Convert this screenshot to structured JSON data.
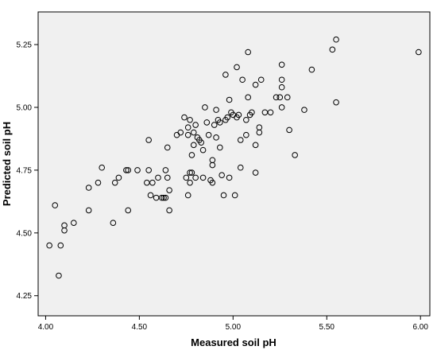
{
  "chart_data": {
    "type": "scatter",
    "xlabel": "Measured soil pH",
    "ylabel": "Predicted soil pH",
    "xlim": [
      3.96,
      6.05
    ],
    "ylim": [
      4.17,
      5.38
    ],
    "xticks": [
      {
        "value": 4.0,
        "label": "4.00"
      },
      {
        "value": 4.5,
        "label": "4.50"
      },
      {
        "value": 5.0,
        "label": "5.00"
      },
      {
        "value": 5.5,
        "label": "5.50"
      },
      {
        "value": 6.0,
        "label": "6.00"
      }
    ],
    "yticks": [
      {
        "value": 4.25,
        "label": "4.25"
      },
      {
        "value": 4.5,
        "label": "4.50"
      },
      {
        "value": 4.75,
        "label": "4.75"
      },
      {
        "value": 5.0,
        "label": "5.00"
      },
      {
        "value": 5.25,
        "label": "5.25"
      }
    ],
    "grid": false,
    "plot_background": "#f0f0f0",
    "marker": "open-circle",
    "points": [
      [
        4.02,
        4.45
      ],
      [
        4.05,
        4.61
      ],
      [
        4.07,
        4.33
      ],
      [
        4.08,
        4.45
      ],
      [
        4.1,
        4.51
      ],
      [
        4.1,
        4.53
      ],
      [
        4.15,
        4.54
      ],
      [
        4.23,
        4.59
      ],
      [
        4.23,
        4.68
      ],
      [
        4.28,
        4.7
      ],
      [
        4.3,
        4.76
      ],
      [
        4.36,
        4.54
      ],
      [
        4.37,
        4.7
      ],
      [
        4.39,
        4.72
      ],
      [
        4.43,
        4.75
      ],
      [
        4.44,
        4.75
      ],
      [
        4.44,
        4.59
      ],
      [
        4.49,
        4.75
      ],
      [
        4.54,
        4.7
      ],
      [
        4.55,
        4.75
      ],
      [
        4.55,
        4.87
      ],
      [
        4.56,
        4.65
      ],
      [
        4.57,
        4.7
      ],
      [
        4.59,
        4.64
      ],
      [
        4.6,
        4.72
      ],
      [
        4.62,
        4.64
      ],
      [
        4.63,
        4.64
      ],
      [
        4.64,
        4.75
      ],
      [
        4.64,
        4.64
      ],
      [
        4.65,
        4.84
      ],
      [
        4.65,
        4.72
      ],
      [
        4.66,
        4.67
      ],
      [
        4.66,
        4.59
      ],
      [
        4.7,
        4.89
      ],
      [
        4.72,
        4.9
      ],
      [
        4.74,
        4.96
      ],
      [
        4.75,
        4.72
      ],
      [
        4.76,
        4.92
      ],
      [
        4.76,
        4.89
      ],
      [
        4.76,
        4.65
      ],
      [
        4.77,
        4.95
      ],
      [
        4.77,
        4.74
      ],
      [
        4.77,
        4.7
      ],
      [
        4.78,
        4.74
      ],
      [
        4.78,
        4.81
      ],
      [
        4.79,
        4.9
      ],
      [
        4.79,
        4.85
      ],
      [
        4.8,
        4.72
      ],
      [
        4.8,
        4.93
      ],
      [
        4.81,
        4.88
      ],
      [
        4.82,
        4.87
      ],
      [
        4.83,
        4.86
      ],
      [
        4.84,
        4.83
      ],
      [
        4.84,
        4.72
      ],
      [
        4.85,
        5.0
      ],
      [
        4.86,
        4.94
      ],
      [
        4.87,
        4.89
      ],
      [
        4.88,
        4.71
      ],
      [
        4.89,
        4.7
      ],
      [
        4.89,
        4.79
      ],
      [
        4.89,
        4.77
      ],
      [
        4.9,
        4.93
      ],
      [
        4.91,
        4.99
      ],
      [
        4.91,
        4.88
      ],
      [
        4.92,
        4.95
      ],
      [
        4.93,
        4.84
      ],
      [
        4.93,
        4.94
      ],
      [
        4.94,
        4.73
      ],
      [
        4.95,
        4.65
      ],
      [
        4.96,
        4.95
      ],
      [
        4.96,
        5.13
      ],
      [
        4.97,
        4.96
      ],
      [
        4.98,
        5.03
      ],
      [
        4.98,
        4.72
      ],
      [
        4.99,
        4.98
      ],
      [
        5.0,
        4.97
      ],
      [
        5.01,
        4.65
      ],
      [
        5.02,
        4.96
      ],
      [
        5.02,
        5.16
      ],
      [
        5.03,
        4.97
      ],
      [
        5.04,
        4.87
      ],
      [
        5.04,
        4.76
      ],
      [
        5.05,
        5.11
      ],
      [
        5.07,
        4.95
      ],
      [
        5.07,
        4.89
      ],
      [
        5.08,
        5.22
      ],
      [
        5.08,
        5.04
      ],
      [
        5.09,
        4.97
      ],
      [
        5.1,
        4.98
      ],
      [
        5.12,
        4.74
      ],
      [
        5.12,
        5.09
      ],
      [
        5.12,
        4.85
      ],
      [
        5.14,
        4.92
      ],
      [
        5.14,
        4.9
      ],
      [
        5.15,
        5.11
      ],
      [
        5.17,
        4.98
      ],
      [
        5.2,
        4.98
      ],
      [
        5.23,
        5.04
      ],
      [
        5.25,
        5.04
      ],
      [
        5.26,
        5.0
      ],
      [
        5.26,
        5.11
      ],
      [
        5.26,
        5.08
      ],
      [
        5.26,
        5.17
      ],
      [
        5.29,
        5.04
      ],
      [
        5.3,
        4.91
      ],
      [
        5.33,
        4.81
      ],
      [
        5.38,
        4.99
      ],
      [
        5.42,
        5.15
      ],
      [
        5.53,
        5.23
      ],
      [
        5.55,
        5.27
      ],
      [
        5.55,
        5.02
      ],
      [
        5.99,
        5.22
      ]
    ]
  }
}
